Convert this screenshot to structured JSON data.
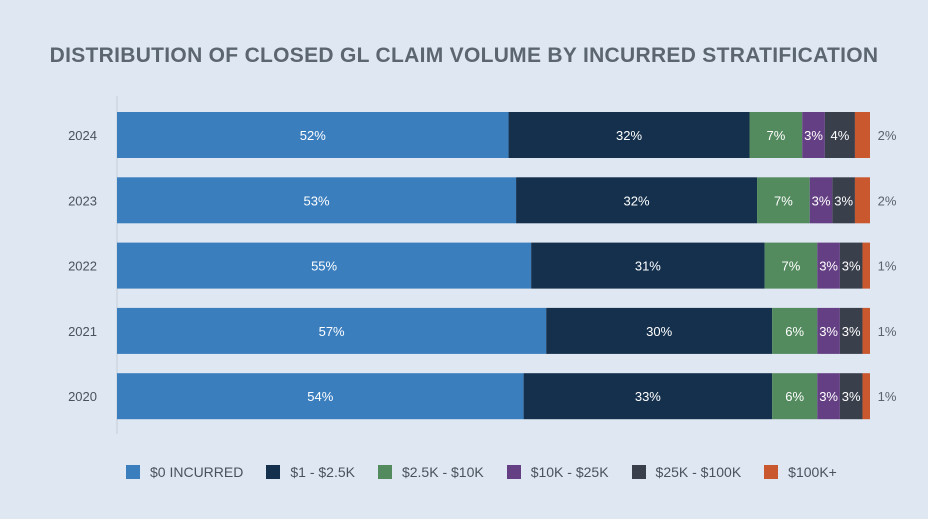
{
  "chart_data": {
    "type": "bar",
    "orientation": "horizontal",
    "stacked": true,
    "title": "DISTRIBUTION OF CLOSED GL CLAIM VOLUME BY INCURRED STRATIFICATION",
    "categories": [
      "2024",
      "2023",
      "2022",
      "2021",
      "2020"
    ],
    "series": [
      {
        "name": "$0 INCURRED",
        "color": "#3a7ebe",
        "values": [
          52,
          53,
          55,
          57,
          54
        ],
        "labels": [
          "52%",
          "53%",
          "55%",
          "57%",
          "54%"
        ]
      },
      {
        "name": "$1 - $2.5K",
        "color": "#14304d",
        "values": [
          32,
          32,
          31,
          30,
          33
        ],
        "labels": [
          "32%",
          "32%",
          "31%",
          "30%",
          "33%"
        ]
      },
      {
        "name": "$2.5K - $10K",
        "color": "#538a5e",
        "values": [
          7,
          7,
          7,
          6,
          6
        ],
        "labels": [
          "7%",
          "7%",
          "7%",
          "6%",
          "6%"
        ]
      },
      {
        "name": "$10K - $25K",
        "color": "#653f84",
        "values": [
          3,
          3,
          3,
          3,
          3
        ],
        "labels": [
          "3%",
          "3%",
          "3%",
          "3%",
          "3%"
        ]
      },
      {
        "name": "$25K - $100K",
        "color": "#3a3f4c",
        "values": [
          4,
          3,
          3,
          3,
          3
        ],
        "labels": [
          "4%",
          "3%",
          "3%",
          "3%",
          "3%"
        ]
      },
      {
        "name": "$100K+",
        "color": "#c9582f",
        "values": [
          2,
          2,
          1,
          1,
          1
        ],
        "labels": [
          "2%",
          "2%",
          "1%",
          "1%",
          "1%"
        ]
      }
    ],
    "xlim": [
      0,
      100
    ],
    "grid": false,
    "legend_position": "bottom"
  }
}
